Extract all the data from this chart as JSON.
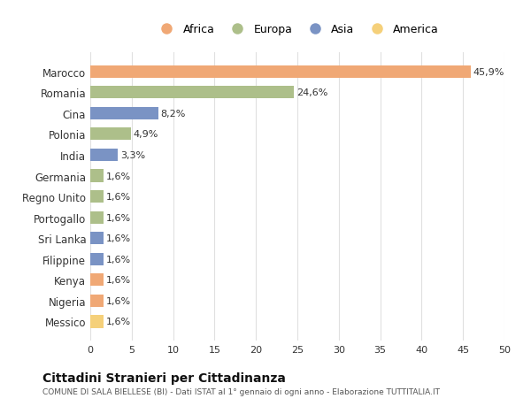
{
  "countries": [
    "Marocco",
    "Romania",
    "Cina",
    "Polonia",
    "India",
    "Germania",
    "Regno Unito",
    "Portogallo",
    "Sri Lanka",
    "Filippine",
    "Kenya",
    "Nigeria",
    "Messico"
  ],
  "values": [
    45.9,
    24.6,
    8.2,
    4.9,
    3.3,
    1.6,
    1.6,
    1.6,
    1.6,
    1.6,
    1.6,
    1.6,
    1.6
  ],
  "labels": [
    "45,9%",
    "24,6%",
    "8,2%",
    "4,9%",
    "3,3%",
    "1,6%",
    "1,6%",
    "1,6%",
    "1,6%",
    "1,6%",
    "1,6%",
    "1,6%",
    "1,6%"
  ],
  "continents": [
    "Africa",
    "Europa",
    "Asia",
    "Europa",
    "Asia",
    "Europa",
    "Europa",
    "Europa",
    "Asia",
    "Asia",
    "Africa",
    "Africa",
    "America"
  ],
  "continent_colors": {
    "Africa": "#F0A875",
    "Europa": "#ADBF8A",
    "Asia": "#7A93C4",
    "America": "#F5D07A"
  },
  "legend_order": [
    "Africa",
    "Europa",
    "Asia",
    "America"
  ],
  "title": "Cittadini Stranieri per Cittadinanza",
  "subtitle": "COMUNE DI SALA BIELLESE (BI) - Dati ISTAT al 1° gennaio di ogni anno - Elaborazione TUTTITALIA.IT",
  "xlim": [
    0,
    50
  ],
  "xticks": [
    0,
    5,
    10,
    15,
    20,
    25,
    30,
    35,
    40,
    45,
    50
  ],
  "background_color": "#FFFFFF",
  "grid_color": "#E0E0E0"
}
